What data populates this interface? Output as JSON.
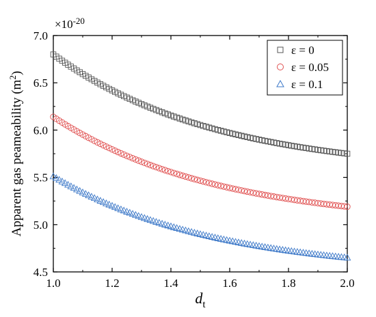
{
  "chart_data": {
    "type": "scatter",
    "xlabel": "d",
    "xlabel_sub": "t",
    "ylabel": "Apparent gas peameability (m",
    "ylabel_sup": "2",
    "ylabel_close": ")",
    "y_multiplier": "×10",
    "y_multiplier_exp": "-20",
    "xlim": [
      1.0,
      2.0
    ],
    "ylim": [
      4.5,
      7.0
    ],
    "xticks": [
      "1.0",
      "1.2",
      "1.4",
      "1.6",
      "1.8",
      "2.0"
    ],
    "yticks": [
      "4.5",
      "5.0",
      "5.5",
      "6.0",
      "6.5",
      "7.0"
    ],
    "grid": false,
    "legend_position": "top-right",
    "x_start": 1.0,
    "x_end": 2.0,
    "x_step": 0.01,
    "series": [
      {
        "name": "ε = 0",
        "marker": "square",
        "color": "#555555",
        "y_at_x1": 6.8,
        "y_at_x2": 5.75,
        "decay": 1.8
      },
      {
        "name": "ε = 0.05",
        "marker": "circle",
        "color": "#e05050",
        "y_at_x1": 6.14,
        "y_at_x2": 5.19,
        "decay": 1.8
      },
      {
        "name": "ε = 0.1",
        "marker": "triangle",
        "color": "#3c78c8",
        "y_at_x1": 5.51,
        "y_at_x2": 4.65,
        "decay": 1.8
      }
    ]
  }
}
